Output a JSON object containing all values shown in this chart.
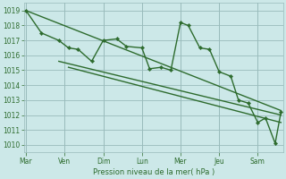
{
  "bg_color": "#cce8e8",
  "grid_color": "#99bbbb",
  "line_color": "#2d6b2d",
  "title": "Pression niveau de la mer( hPa )",
  "ylim": [
    1009.5,
    1019.5
  ],
  "yticks": [
    1010,
    1011,
    1012,
    1013,
    1014,
    1015,
    1016,
    1017,
    1018,
    1019
  ],
  "xtick_labels": [
    "Mar",
    "Ven",
    "Dim",
    "Lun",
    "Mer",
    "Jeu",
    "Sam"
  ],
  "xtick_positions": [
    0,
    1,
    2,
    3,
    4,
    5,
    6
  ],
  "xlim": [
    -0.05,
    6.65
  ],
  "series": [
    {
      "x": [
        0.0,
        0.4,
        0.85,
        1.1,
        1.35,
        1.7,
        2.0,
        2.35,
        2.6,
        3.0,
        3.2,
        3.5,
        3.75,
        4.0,
        4.2,
        4.5,
        4.75,
        5.0,
        5.3,
        5.5,
        5.75,
        6.0,
        6.2,
        6.45,
        6.6
      ],
      "y": [
        1019.0,
        1017.5,
        1017.0,
        1016.5,
        1016.4,
        1015.6,
        1017.0,
        1017.1,
        1016.6,
        1016.5,
        1015.1,
        1015.2,
        1015.0,
        1018.2,
        1018.0,
        1016.5,
        1016.4,
        1014.9,
        1014.6,
        1013.0,
        1012.8,
        1011.5,
        1011.8,
        1010.1,
        1012.2
      ],
      "lw": 1.0
    },
    {
      "x": [
        0.0,
        6.6
      ],
      "y": [
        1019.0,
        1012.3
      ],
      "lw": 1.0
    },
    {
      "x": [
        0.85,
        6.6
      ],
      "y": [
        1015.6,
        1012.0
      ],
      "lw": 1.0
    },
    {
      "x": [
        1.1,
        6.6
      ],
      "y": [
        1015.2,
        1011.5
      ],
      "lw": 1.0
    }
  ]
}
